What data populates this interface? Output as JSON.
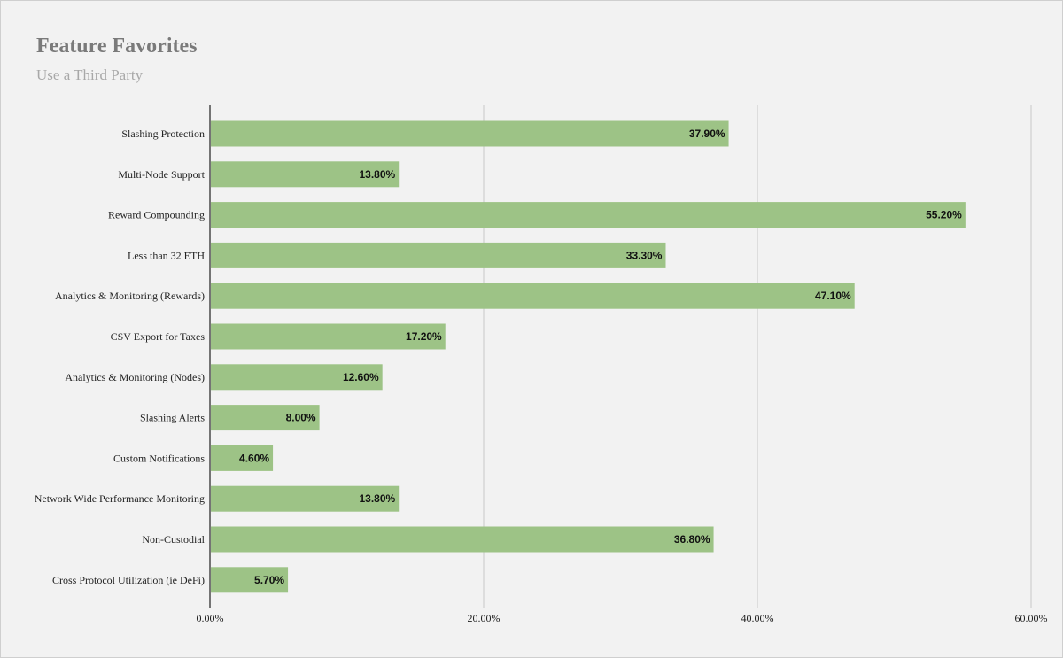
{
  "chart_data": {
    "type": "bar",
    "orientation": "horizontal",
    "title": "Feature Favorites",
    "subtitle": "Use a Third Party",
    "categories": [
      "Slashing Protection",
      "Multi-Node Support",
      "Reward Compounding",
      "Less than 32 ETH",
      "Analytics & Monitoring (Rewards)",
      "CSV Export for Taxes",
      "Analytics & Monitoring (Nodes)",
      "Slashing Alerts",
      "Custom Notifications",
      "Network Wide Performance Monitoring",
      "Non-Custodial",
      "Cross Protocol Utilization (ie DeFi)"
    ],
    "values": [
      37.9,
      13.8,
      55.2,
      33.3,
      47.1,
      17.2,
      12.6,
      8.0,
      4.6,
      13.8,
      36.8,
      5.7
    ],
    "value_labels": [
      "37.90%",
      "13.80%",
      "55.20%",
      "33.30%",
      "47.10%",
      "17.20%",
      "12.60%",
      "8.00%",
      "4.60%",
      "13.80%",
      "36.80%",
      "5.70%"
    ],
    "x_ticks": [
      0,
      20,
      40,
      60
    ],
    "x_tick_labels": [
      "0.00%",
      "20.00%",
      "40.00%",
      "60.00%"
    ],
    "xlim": [
      0,
      60
    ],
    "grid": true,
    "legend": "none",
    "colors": {
      "bar": "#9dc386",
      "grid": "#c8c8c8",
      "axis": "#222222",
      "background": "#f2f2f2"
    }
  }
}
